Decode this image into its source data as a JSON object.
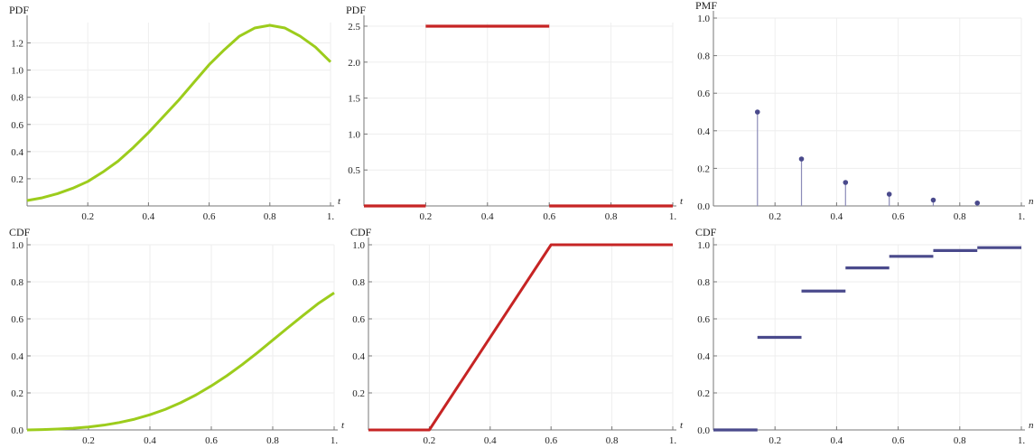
{
  "colors": {
    "green": "#9ccc1c",
    "red": "#c62424",
    "blue": "#4a4a8c",
    "axis": "#777777",
    "grid": "#eeeeee"
  },
  "chart_data": [
    {
      "type": "line",
      "ylabel": "PDF",
      "xlabel": "t",
      "xlim": [
        0,
        1
      ],
      "ylim": [
        0,
        1.35
      ],
      "xticks": [
        "0.2",
        "0.4",
        "0.6",
        "0.8",
        "1."
      ],
      "yticks": [
        "0.2",
        "0.4",
        "0.6",
        "0.8",
        "1.0",
        "1.2"
      ],
      "grid": true,
      "color": "green",
      "series": [
        {
          "x": [
            0,
            0.05,
            0.1,
            0.15,
            0.2,
            0.25,
            0.3,
            0.35,
            0.4,
            0.45,
            0.5,
            0.55,
            0.6,
            0.65,
            0.7,
            0.75,
            0.8,
            0.85,
            0.9,
            0.95,
            1.0
          ],
          "y": [
            0.04,
            0.06,
            0.09,
            0.13,
            0.18,
            0.25,
            0.33,
            0.43,
            0.54,
            0.66,
            0.78,
            0.91,
            1.04,
            1.15,
            1.25,
            1.31,
            1.33,
            1.31,
            1.25,
            1.17,
            1.06
          ]
        }
      ]
    },
    {
      "type": "line",
      "ylabel": "PDF",
      "xlabel": "t",
      "xlim": [
        0,
        1
      ],
      "ylim": [
        0,
        2.55
      ],
      "xticks": [
        "0.2",
        "0.4",
        "0.6",
        "0.8",
        "1."
      ],
      "yticks": [
        "0.5",
        "1.0",
        "1.5",
        "2.0",
        "2.5"
      ],
      "grid": true,
      "color": "red",
      "segments": [
        {
          "x": [
            0,
            0.2
          ],
          "y": [
            0,
            0
          ]
        },
        {
          "x": [
            0.2,
            0.6
          ],
          "y": [
            2.5,
            2.5
          ]
        },
        {
          "x": [
            0.6,
            1.0
          ],
          "y": [
            0,
            0
          ]
        }
      ]
    },
    {
      "type": "scatter",
      "ylabel": "PMF",
      "xlabel": "n",
      "xlim": [
        0,
        1
      ],
      "ylim": [
        0,
        1.0
      ],
      "xticks": [
        "0.2",
        "0.4",
        "0.6",
        "0.8",
        "1."
      ],
      "yticks": [
        "0.0",
        "0.2",
        "0.4",
        "0.6",
        "0.8",
        "1.0"
      ],
      "grid": true,
      "color": "blue",
      "stems": true,
      "series": [
        {
          "x": [
            0.143,
            0.286,
            0.429,
            0.571,
            0.714,
            0.857
          ],
          "y": [
            0.5,
            0.25,
            0.125,
            0.0625,
            0.03125,
            0.015625
          ]
        }
      ]
    },
    {
      "type": "line",
      "ylabel": "CDF",
      "xlabel": "t",
      "xlim": [
        0,
        1
      ],
      "ylim": [
        0,
        1.0
      ],
      "xticks": [
        "0.2",
        "0.4",
        "0.6",
        "0.8",
        "1."
      ],
      "yticks": [
        "0.0",
        "0.2",
        "0.4",
        "0.6",
        "0.8",
        "1.0"
      ],
      "grid": true,
      "color": "green",
      "series": [
        {
          "x": [
            0,
            0.05,
            0.1,
            0.15,
            0.2,
            0.25,
            0.3,
            0.35,
            0.4,
            0.45,
            0.5,
            0.55,
            0.6,
            0.65,
            0.7,
            0.75,
            0.8,
            0.85,
            0.9,
            0.95,
            1.0
          ],
          "y": [
            0.0,
            0.002,
            0.005,
            0.009,
            0.016,
            0.026,
            0.04,
            0.058,
            0.082,
            0.111,
            0.147,
            0.189,
            0.238,
            0.292,
            0.352,
            0.417,
            0.485,
            0.553,
            0.62,
            0.685,
            0.74
          ]
        }
      ]
    },
    {
      "type": "line",
      "ylabel": "CDF",
      "xlabel": "t",
      "xlim": [
        0,
        1
      ],
      "ylim": [
        0,
        1.0
      ],
      "xticks": [
        "0.2",
        "0.4",
        "0.6",
        "0.8",
        "1."
      ],
      "yticks": [
        "0.2",
        "0.4",
        "0.6",
        "0.8",
        "1.0"
      ],
      "grid": true,
      "color": "red",
      "series": [
        {
          "x": [
            0,
            0.2,
            0.6,
            1.0
          ],
          "y": [
            0,
            0,
            1.0,
            1.0
          ]
        }
      ]
    },
    {
      "type": "line",
      "ylabel": "CDF",
      "xlabel": "n",
      "xlim": [
        0,
        1
      ],
      "ylim": [
        0,
        1.0
      ],
      "xticks": [
        "0.2",
        "0.4",
        "0.6",
        "0.8",
        "1."
      ],
      "yticks": [
        "0.0",
        "0.2",
        "0.4",
        "0.6",
        "0.8",
        "1.0"
      ],
      "grid": true,
      "color": "blue",
      "steps": [
        {
          "x": [
            0,
            0.143
          ],
          "y": 0
        },
        {
          "x": [
            0.143,
            0.286
          ],
          "y": 0.5
        },
        {
          "x": [
            0.286,
            0.429
          ],
          "y": 0.75
        },
        {
          "x": [
            0.429,
            0.571
          ],
          "y": 0.875
        },
        {
          "x": [
            0.571,
            0.714
          ],
          "y": 0.9375
        },
        {
          "x": [
            0.714,
            0.857
          ],
          "y": 0.96875
        },
        {
          "x": [
            0.857,
            1.0
          ],
          "y": 0.984375
        }
      ]
    }
  ]
}
